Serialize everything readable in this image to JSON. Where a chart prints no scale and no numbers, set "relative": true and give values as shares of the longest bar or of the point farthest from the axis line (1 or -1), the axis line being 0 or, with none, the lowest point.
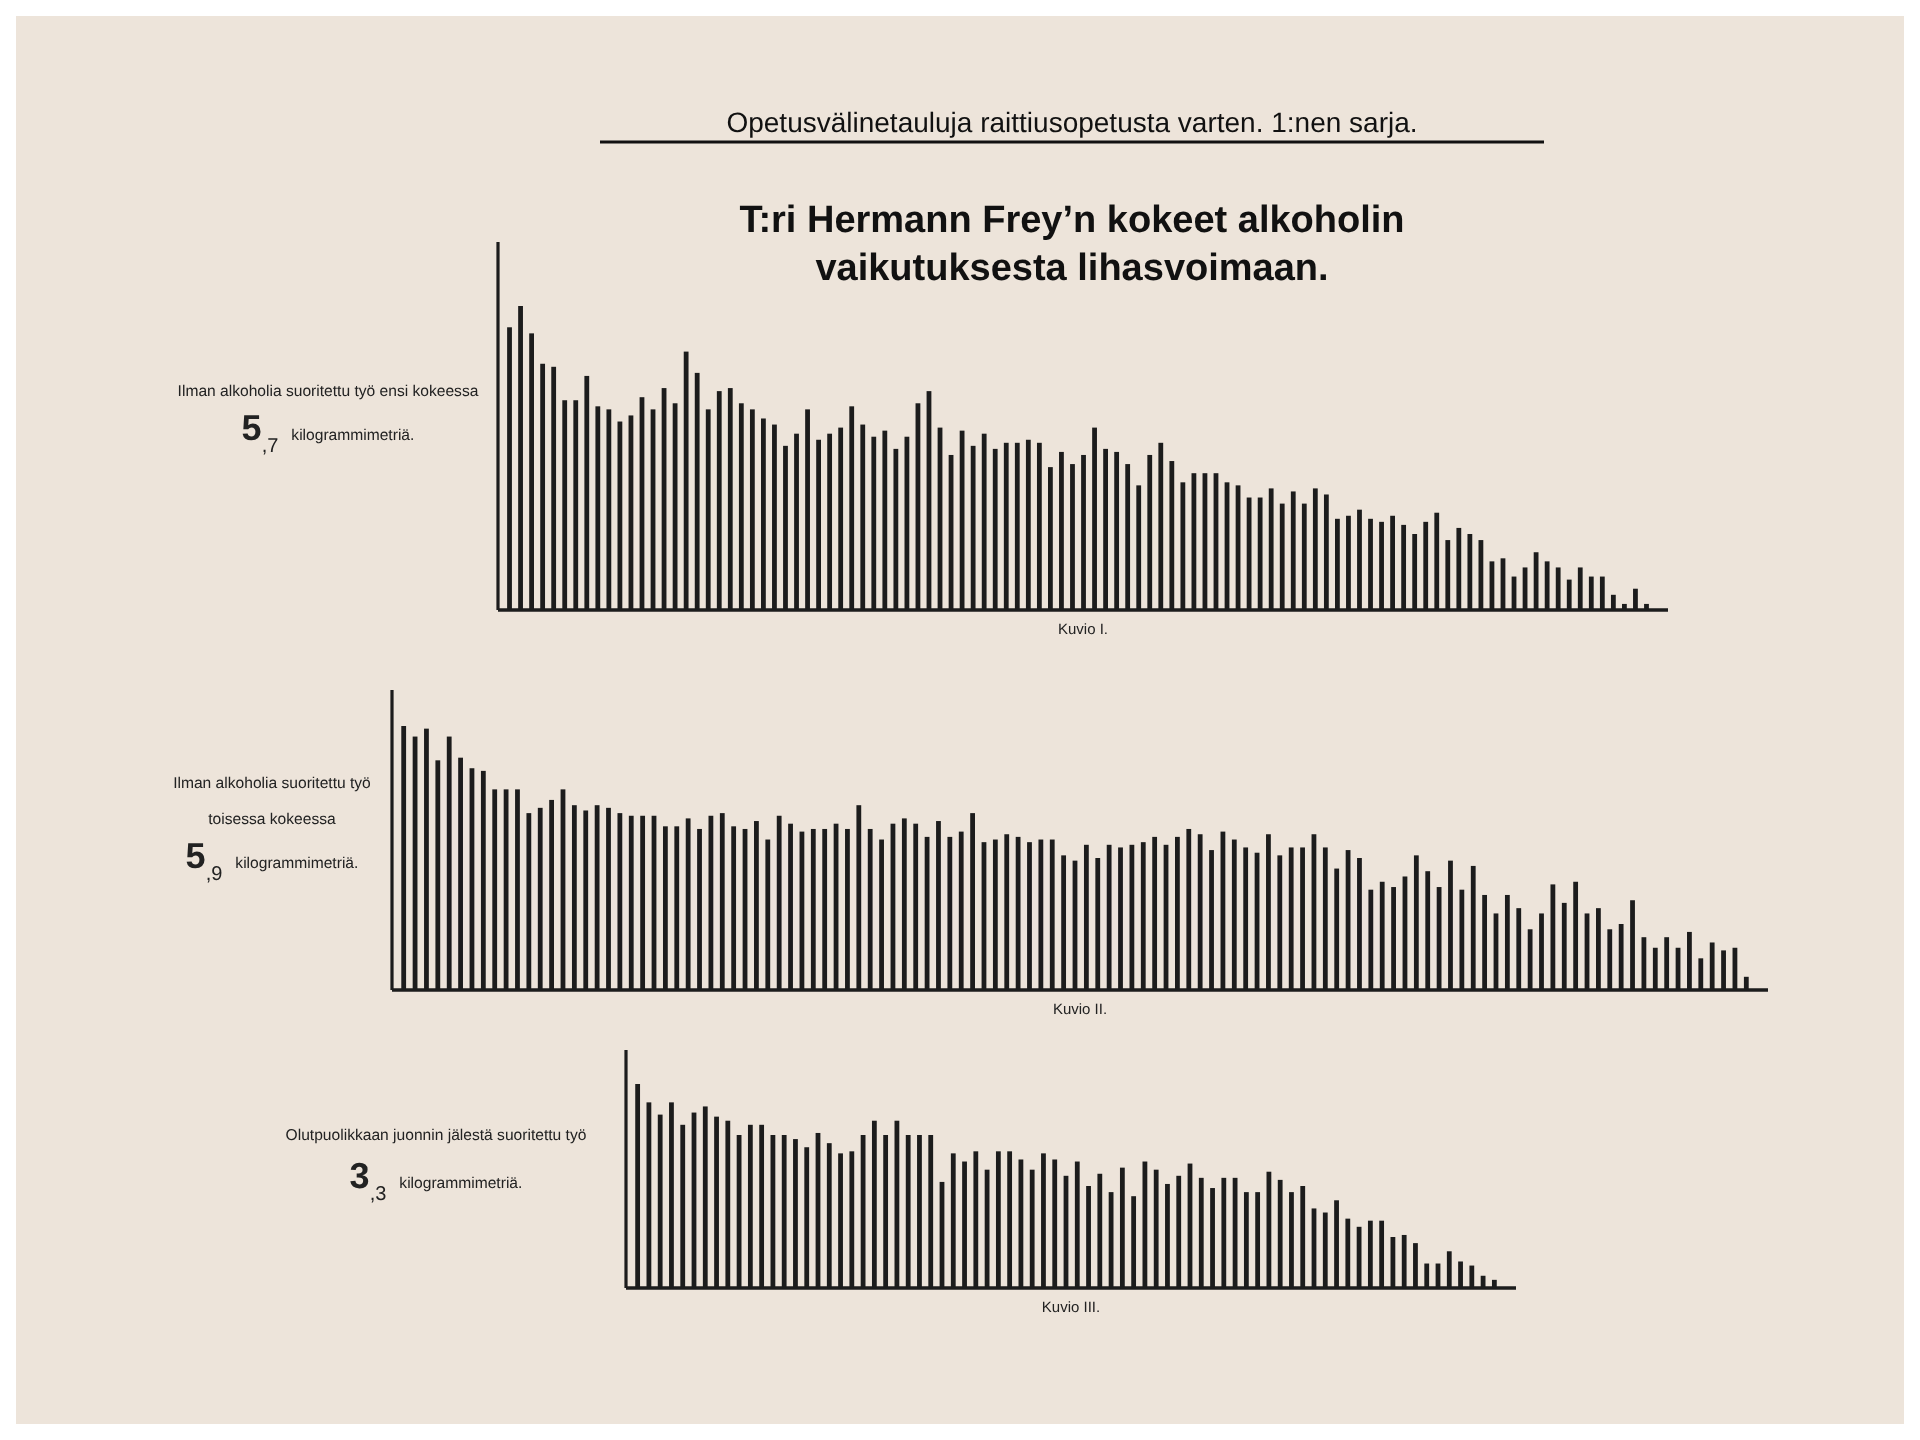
{
  "chart_data": [
    {
      "type": "bar",
      "relative": true,
      "subtitle": "Opetusvälinetauluja raittiusopetusta varten. 1:nen sarja.",
      "title": "T:ri Hermann Frey’n kokeet alkoholin vaikutuksesta lihasvoimaan.",
      "xlabel": "Kuvio I.",
      "color": "#1c1c1c",
      "annotations": [
        "Ilman alkoholia suoritettu työ ensi kokeessa",
        "5$_{,7}$ kilogrammimetriä."
      ],
      "categories": [
        null,
        null,
        null,
        null,
        null,
        null,
        null,
        null,
        null,
        null,
        null,
        null,
        null,
        null,
        null,
        null,
        null,
        null,
        null,
        null,
        null,
        null,
        null,
        null,
        null,
        null,
        null,
        null,
        null,
        null,
        null,
        null,
        null,
        null,
        null,
        null,
        null,
        null,
        null,
        null,
        null,
        null,
        null,
        null,
        null,
        null,
        null,
        null,
        null,
        null,
        null,
        null,
        null,
        null,
        null,
        null,
        null,
        null,
        null,
        null,
        null,
        null,
        null,
        null,
        null,
        null,
        null,
        null,
        null,
        null,
        null,
        null,
        null,
        null,
        null,
        null,
        null,
        null,
        null,
        null,
        null,
        null,
        null,
        null,
        null,
        null,
        null,
        null,
        null,
        null,
        null,
        null,
        null,
        null,
        null,
        null,
        null,
        null,
        null,
        null,
        null,
        null,
        null,
        null
      ],
      "values": [
        0.93,
        1,
        0.91,
        0.81,
        0.8,
        0.69,
        0.69,
        0.77,
        0.67,
        0.66,
        0.62,
        0.64,
        0.7,
        0.66,
        0.73,
        0.68,
        0.85,
        0.78,
        0.66,
        0.72,
        0.73,
        0.68,
        0.66,
        0.63,
        0.61,
        0.54,
        0.58,
        0.66,
        0.56,
        0.58,
        0.6,
        0.67,
        0.61,
        0.57,
        0.59,
        0.53,
        0.57,
        0.68,
        0.72,
        0.6,
        0.51,
        0.59,
        0.54,
        0.58,
        0.53,
        0.55,
        0.55,
        0.56,
        0.55,
        0.47,
        0.52,
        0.48,
        0.51,
        0.6,
        0.53,
        0.52,
        0.48,
        0.41,
        0.51,
        0.55,
        0.49,
        0.42,
        0.45,
        0.45,
        0.45,
        0.42,
        0.41,
        0.37,
        0.37,
        0.4,
        0.35,
        0.39,
        0.35,
        0.4,
        0.38,
        0.3,
        0.31,
        0.33,
        0.3,
        0.29,
        0.31,
        0.28,
        0.25,
        0.29,
        0.32,
        0.23,
        0.27,
        0.25,
        0.23,
        0.16,
        0.17,
        0.11,
        0.14,
        0.19,
        0.16,
        0.14,
        0.1,
        0.14,
        0.11,
        0.11,
        0.05,
        0.02,
        0.07,
        0.02
      ]
    },
    {
      "type": "bar",
      "relative": true,
      "xlabel": "Kuvio II.",
      "color": "#1c1c1c",
      "annotations": [
        "Ilman alkoholia suoritettu työ",
        "toisessa kokeessa",
        "5$_{,9}$ kilogrammimetriä."
      ],
      "categories": [
        null,
        null,
        null,
        null,
        null,
        null,
        null,
        null,
        null,
        null,
        null,
        null,
        null,
        null,
        null,
        null,
        null,
        null,
        null,
        null,
        null,
        null,
        null,
        null,
        null,
        null,
        null,
        null,
        null,
        null,
        null,
        null,
        null,
        null,
        null,
        null,
        null,
        null,
        null,
        null,
        null,
        null,
        null,
        null,
        null,
        null,
        null,
        null,
        null,
        null,
        null,
        null,
        null,
        null,
        null,
        null,
        null,
        null,
        null,
        null,
        null,
        null,
        null,
        null,
        null,
        null,
        null,
        null,
        null,
        null,
        null,
        null,
        null,
        null,
        null,
        null,
        null,
        null,
        null,
        null,
        null,
        null,
        null,
        null,
        null,
        null,
        null,
        null,
        null,
        null,
        null,
        null,
        null,
        null,
        null,
        null,
        null,
        null,
        null,
        null,
        null,
        null,
        null,
        null,
        null,
        null,
        null,
        null,
        null,
        null,
        null,
        null,
        null,
        null,
        null,
        null,
        null,
        null,
        null
      ],
      "values": [
        1,
        0.96,
        0.99,
        0.87,
        0.96,
        0.88,
        0.84,
        0.83,
        0.76,
        0.76,
        0.76,
        0.67,
        0.69,
        0.72,
        0.76,
        0.7,
        0.68,
        0.7,
        0.69,
        0.67,
        0.66,
        0.66,
        0.66,
        0.62,
        0.62,
        0.65,
        0.61,
        0.66,
        0.67,
        0.62,
        0.61,
        0.64,
        0.57,
        0.66,
        0.63,
        0.6,
        0.61,
        0.61,
        0.63,
        0.61,
        0.7,
        0.61,
        0.57,
        0.63,
        0.65,
        0.63,
        0.58,
        0.64,
        0.58,
        0.6,
        0.67,
        0.56,
        0.57,
        0.59,
        0.58,
        0.56,
        0.57,
        0.57,
        0.51,
        0.49,
        0.55,
        0.5,
        0.55,
        0.54,
        0.55,
        0.56,
        0.58,
        0.55,
        0.58,
        0.61,
        0.59,
        0.53,
        0.6,
        0.57,
        0.54,
        0.52,
        0.59,
        0.51,
        0.54,
        0.54,
        0.59,
        0.54,
        0.46,
        0.53,
        0.5,
        0.38,
        0.41,
        0.39,
        0.43,
        0.51,
        0.45,
        0.39,
        0.49,
        0.38,
        0.47,
        0.36,
        0.29,
        0.36,
        0.31,
        0.23,
        0.29,
        0.4,
        0.33,
        0.41,
        0.29,
        0.31,
        0.23,
        0.25,
        0.34,
        0.2,
        0.16,
        0.2,
        0.16,
        0.22,
        0.12,
        0.18,
        0.15,
        0.16,
        0.05
      ]
    },
    {
      "type": "bar",
      "relative": true,
      "xlabel": "Kuvio III.",
      "color": "#1c1c1c",
      "annotations": [
        "Olutpuolikkaan juonnin jälestä suoritettu työ",
        "3$_{,3}$ kilogrammimetriä."
      ],
      "categories": [
        null,
        null,
        null,
        null,
        null,
        null,
        null,
        null,
        null,
        null,
        null,
        null,
        null,
        null,
        null,
        null,
        null,
        null,
        null,
        null,
        null,
        null,
        null,
        null,
        null,
        null,
        null,
        null,
        null,
        null,
        null,
        null,
        null,
        null,
        null,
        null,
        null,
        null,
        null,
        null,
        null,
        null,
        null,
        null,
        null,
        null,
        null,
        null,
        null,
        null,
        null,
        null,
        null,
        null,
        null,
        null,
        null,
        null,
        null,
        null,
        null,
        null,
        null,
        null,
        null,
        null,
        null,
        null,
        null,
        null,
        null,
        null,
        null,
        null,
        null,
        null,
        null
      ],
      "values": [
        1,
        0.91,
        0.85,
        0.91,
        0.8,
        0.86,
        0.89,
        0.84,
        0.82,
        0.75,
        0.8,
        0.8,
        0.75,
        0.75,
        0.73,
        0.69,
        0.76,
        0.71,
        0.66,
        0.67,
        0.75,
        0.82,
        0.75,
        0.82,
        0.75,
        0.75,
        0.75,
        0.52,
        0.66,
        0.62,
        0.67,
        0.58,
        0.67,
        0.67,
        0.63,
        0.58,
        0.66,
        0.63,
        0.55,
        0.62,
        0.5,
        0.56,
        0.47,
        0.59,
        0.45,
        0.62,
        0.58,
        0.51,
        0.55,
        0.61,
        0.54,
        0.49,
        0.54,
        0.54,
        0.47,
        0.47,
        0.57,
        0.53,
        0.47,
        0.5,
        0.39,
        0.37,
        0.43,
        0.34,
        0.3,
        0.33,
        0.33,
        0.25,
        0.26,
        0.22,
        0.12,
        0.12,
        0.18,
        0.13,
        0.11,
        0.06,
        0.04
      ]
    }
  ]
}
